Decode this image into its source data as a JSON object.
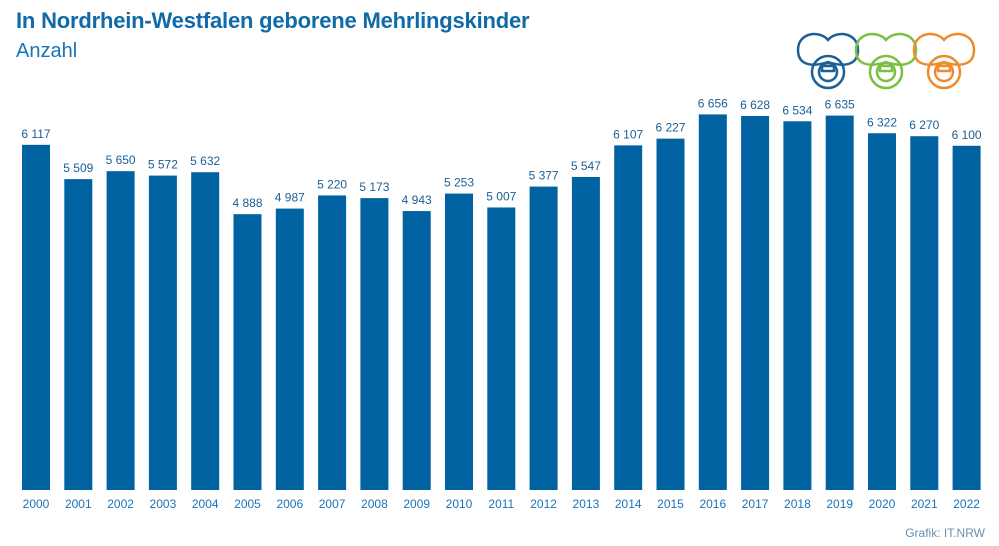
{
  "title": "In Nordrhein-Westfalen geborene Mehrlingskinder",
  "subtitle": "Anzahl",
  "source": "Grafik: IT.NRW",
  "colors": {
    "bar": "#0062a0",
    "title": "#0f6aa8",
    "axis": "#1a73b8",
    "label": "#1b5f95"
  },
  "chart_data": {
    "type": "bar",
    "title": "In Nordrhein-Westfalen geborene Mehrlingskinder",
    "subtitle": "Anzahl",
    "xlabel": "",
    "ylabel": "Anzahl",
    "ylim": [
      0,
      7000
    ],
    "grid": false,
    "categories": [
      "2000",
      "2001",
      "2002",
      "2003",
      "2004",
      "2005",
      "2006",
      "2007",
      "2008",
      "2009",
      "2010",
      "2011",
      "2012",
      "2013",
      "2014",
      "2015",
      "2016",
      "2017",
      "2018",
      "2019",
      "2020",
      "2021",
      "2022"
    ],
    "values": [
      6117,
      5509,
      5650,
      5572,
      5632,
      4888,
      4987,
      5220,
      5173,
      4943,
      5253,
      5007,
      5377,
      5547,
      6107,
      6227,
      6656,
      6628,
      6534,
      6635,
      6322,
      6270,
      6100
    ],
    "value_labels": [
      "6 117",
      "5 509",
      "5 650",
      "5 572",
      "5 632",
      "4 888",
      "4 987",
      "5 220",
      "5 173",
      "4 943",
      "5 253",
      "5 007",
      "5 377",
      "5 547",
      "6 107",
      "6 227",
      "6 656",
      "6 628",
      "6 534",
      "6 635",
      "6 322",
      "6 270",
      "6 100"
    ]
  }
}
